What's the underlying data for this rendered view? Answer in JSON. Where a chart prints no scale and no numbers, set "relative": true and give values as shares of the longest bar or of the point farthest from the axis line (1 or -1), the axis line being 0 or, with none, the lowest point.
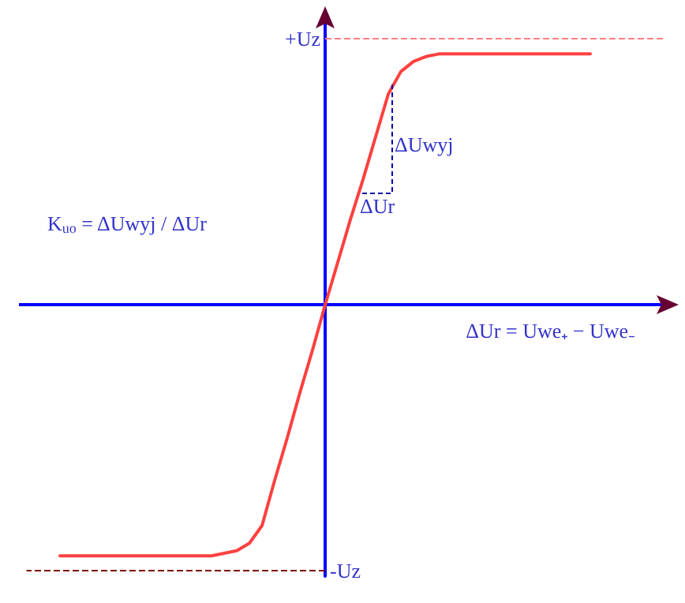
{
  "chart_data": {
    "type": "line",
    "relative": true,
    "xlabel": "ΔUr = Uwe₊ − Uwe₋",
    "categories": [
      null,
      null,
      null,
      null,
      null,
      null,
      null,
      null,
      null,
      null,
      null,
      null,
      null,
      null,
      null,
      null,
      null,
      null,
      null,
      null,
      null,
      null,
      null,
      null,
      null,
      null,
      null,
      null,
      null,
      null,
      null,
      null,
      null,
      null,
      null,
      null,
      null,
      null,
      null,
      null,
      null,
      null,
      null
    ],
    "series": [
      {
        "color": "#ff4040",
        "values": [
          -1,
          -1,
          -1,
          -1,
          -1,
          -1,
          -1,
          -1,
          -1,
          -1,
          -1,
          -1,
          -1,
          -0.99,
          -0.98,
          -0.95,
          -0.88,
          -0.7,
          -0.53,
          -0.35,
          -0.18,
          0,
          0.17,
          0.34,
          0.5,
          0.67,
          0.84,
          0.93,
          0.97,
          0.99,
          1,
          1,
          1,
          1,
          1,
          1,
          1,
          1,
          1,
          1,
          1,
          1,
          1
        ]
      }
    ],
    "ref_lines": [
      {
        "axis": "y",
        "value": 0,
        "color": "#0000ff",
        "line_style": "solid"
      },
      {
        "axis": "y",
        "value": 1.06,
        "label": "+Uz",
        "color": "#ff8080",
        "line_style": "dashed"
      },
      {
        "axis": "y",
        "value": -1.06,
        "label": "-Uz",
        "color": "#800000",
        "line_style": "dashed"
      }
    ],
    "annotations": [
      "K$_{uo}$ = ΔUwyj / ΔUr",
      "ΔUwyj",
      "ΔUr"
    ],
    "grid": false,
    "marker": "none",
    "line_style": "solid"
  }
}
